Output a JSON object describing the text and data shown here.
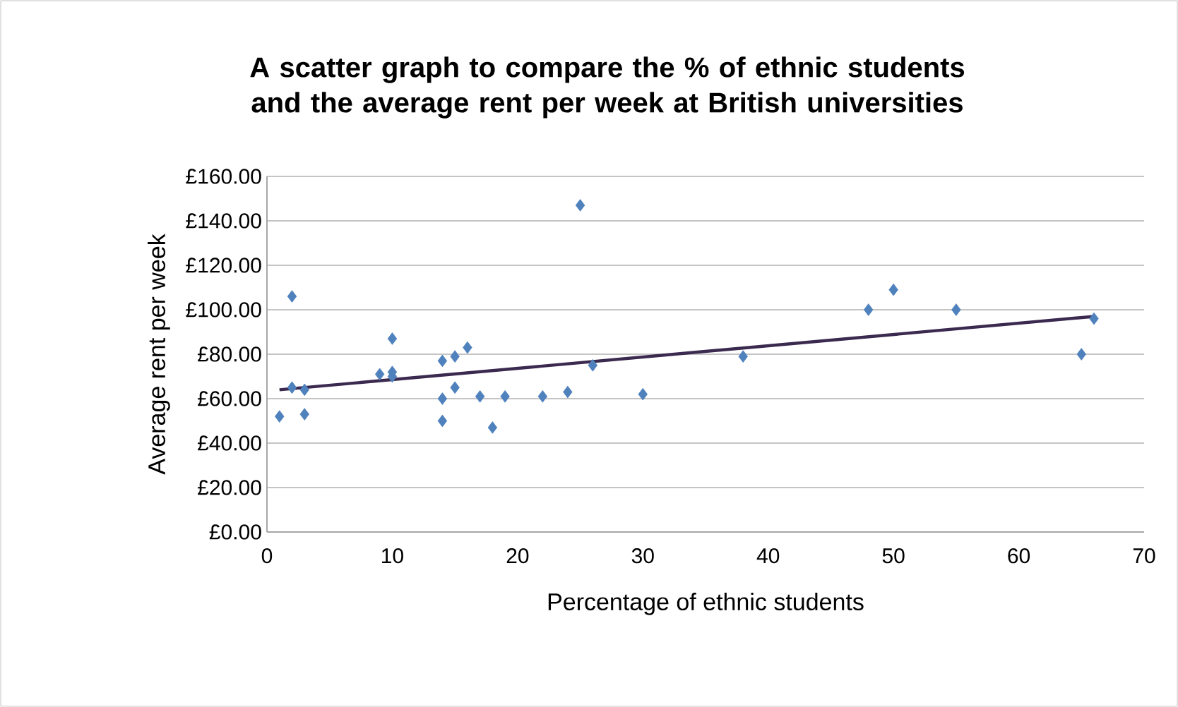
{
  "chart_data": {
    "type": "scatter",
    "title": "A scatter graph to compare the % of ethnic students and the average rent per week at British universities",
    "xlabel": "Percentage of ethnic students",
    "ylabel": "Average rent per week",
    "series": [
      {
        "color": "#4f81bd",
        "marker": "diamond",
        "x": [
          1,
          2,
          2,
          3,
          3,
          9,
          10,
          10,
          10,
          14,
          14,
          14,
          15,
          15,
          16,
          17,
          18,
          19,
          22,
          24,
          25,
          26,
          30,
          38,
          48,
          50,
          55,
          65,
          66
        ],
        "values": [
          52,
          106,
          65,
          64,
          53,
          71,
          87,
          72,
          70,
          77,
          60,
          50,
          65,
          79,
          83,
          61,
          47,
          61,
          61,
          63,
          147,
          75,
          62,
          79,
          100,
          109,
          100,
          80,
          96
        ]
      },
      {
        "type": "line",
        "color": "#3b2a4f",
        "marker": "none",
        "x": [
          1,
          66
        ],
        "values": [
          64,
          97
        ]
      }
    ],
    "xlim": [
      0,
      70
    ],
    "xticks": [
      0,
      10,
      20,
      30,
      40,
      50,
      60,
      70
    ],
    "ylim": [
      0,
      160
    ],
    "yticks": [
      {
        "value": 0,
        "label": "£0.00"
      },
      {
        "value": 20,
        "label": "£20.00"
      },
      {
        "value": 40,
        "label": "£40.00"
      },
      {
        "value": 60,
        "label": "£60.00"
      },
      {
        "value": 80,
        "label": "£80.00"
      },
      {
        "value": 100,
        "label": "£100.00"
      },
      {
        "value": 120,
        "label": "£120.00"
      },
      {
        "value": 140,
        "label": "£140.00"
      },
      {
        "value": 160,
        "label": "£160.00"
      }
    ],
    "grid": "y"
  }
}
